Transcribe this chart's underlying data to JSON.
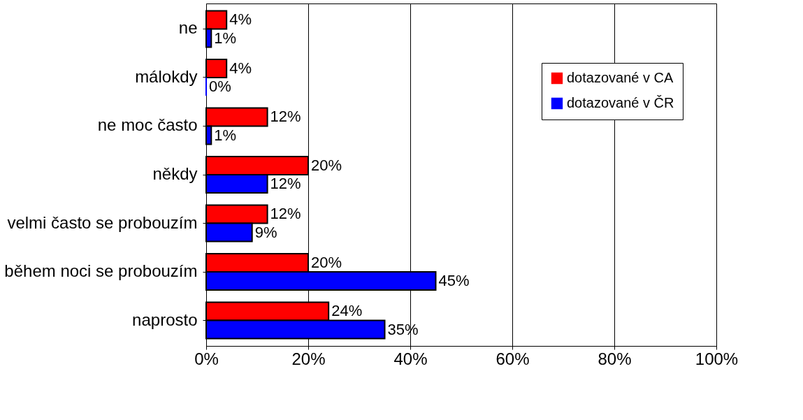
{
  "chart_data": {
    "type": "bar",
    "orientation": "horizontal",
    "categories": [
      "ne",
      "málokdy",
      "ne moc často",
      "někdy",
      "velmi často se probouzím",
      "během noci se probouzím",
      "naprosto"
    ],
    "series": [
      {
        "name": "dotazované v CA",
        "color": "#ff0000",
        "values": [
          4,
          4,
          12,
          20,
          12,
          20,
          24
        ],
        "value_labels": [
          "4%",
          "4%",
          "12%",
          "20%",
          "12%",
          "20%",
          "24%"
        ]
      },
      {
        "name": "dotazované v ČR",
        "color": "#0000ff",
        "values": [
          1,
          0,
          1,
          12,
          9,
          45,
          35
        ],
        "value_labels": [
          "1%",
          "0%",
          "1%",
          "12%",
          "9%",
          "45%",
          "35%"
        ]
      }
    ],
    "xlim": [
      0,
      100
    ],
    "xticks": [
      {
        "value": 0,
        "label": "0%"
      },
      {
        "value": 20,
        "label": "20%"
      },
      {
        "value": 40,
        "label": "40%"
      },
      {
        "value": 60,
        "label": "60%"
      },
      {
        "value": 80,
        "label": "80%"
      },
      {
        "value": 100,
        "label": "100%"
      }
    ],
    "grid": "x",
    "legend": "right"
  }
}
